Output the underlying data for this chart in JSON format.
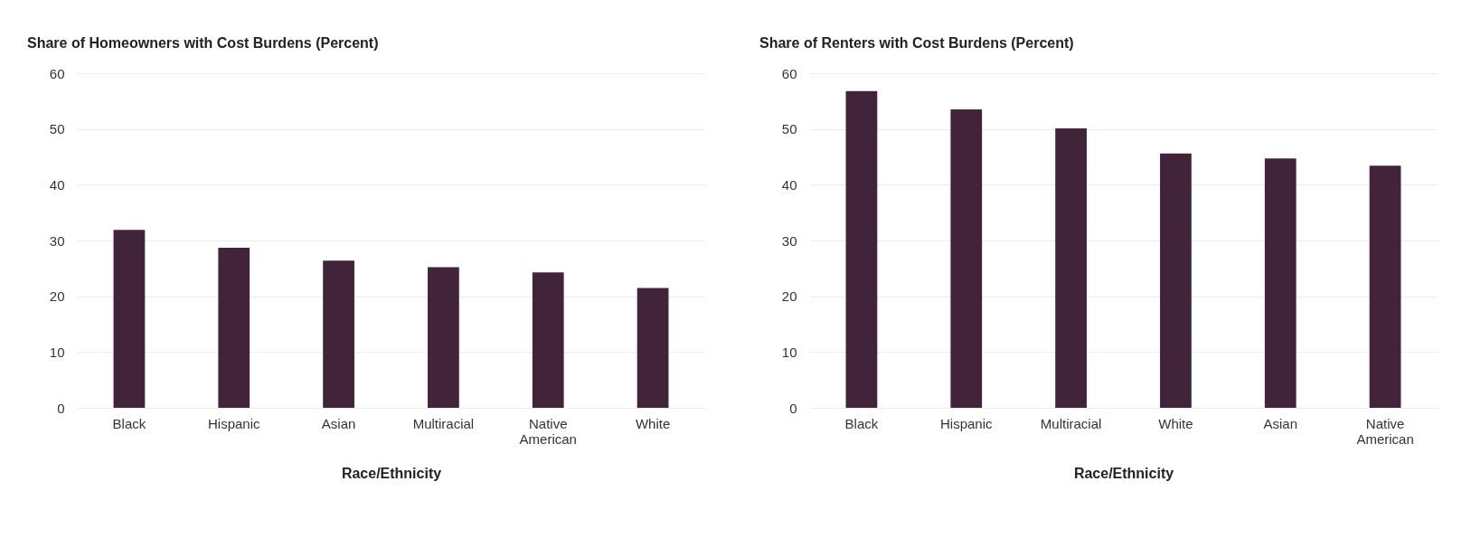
{
  "chart_data": [
    {
      "type": "bar",
      "title": "Share of Homeowners with Cost Burdens (Percent)",
      "xlabel": "Race/Ethnicity",
      "categories": [
        "Black",
        "Hispanic",
        "Asian",
        "Multiracial",
        "Native American",
        "White"
      ],
      "values": [
        31.9,
        28.7,
        26.4,
        25.2,
        24.3,
        21.5
      ],
      "color": "#41243a",
      "ylim": [
        0,
        60
      ],
      "yticks": [
        0,
        10,
        20,
        30,
        40,
        50,
        60
      ],
      "grid": "y"
    },
    {
      "type": "bar",
      "title": "Share of Renters with Cost Burdens (Percent)",
      "xlabel": "Race/Ethnicity",
      "categories": [
        "Black",
        "Hispanic",
        "Multiracial",
        "White",
        "Asian",
        "Native American"
      ],
      "values": [
        56.8,
        53.5,
        50.1,
        45.6,
        44.7,
        43.4
      ],
      "color": "#41243a",
      "ylim": [
        0,
        60
      ],
      "yticks": [
        0,
        10,
        20,
        30,
        40,
        50,
        60
      ],
      "grid": "y"
    }
  ]
}
